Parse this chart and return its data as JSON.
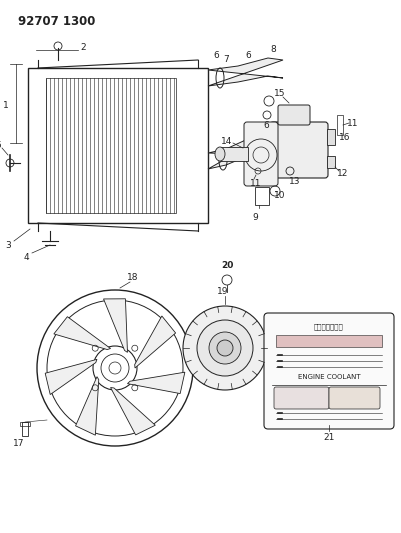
{
  "title": "92707 1300",
  "bg": "#ffffff",
  "lc": "#222222",
  "fig_w": 4.01,
  "fig_h": 5.33,
  "dpi": 100,
  "label_fs": 6.5,
  "title_fs": 8.5
}
